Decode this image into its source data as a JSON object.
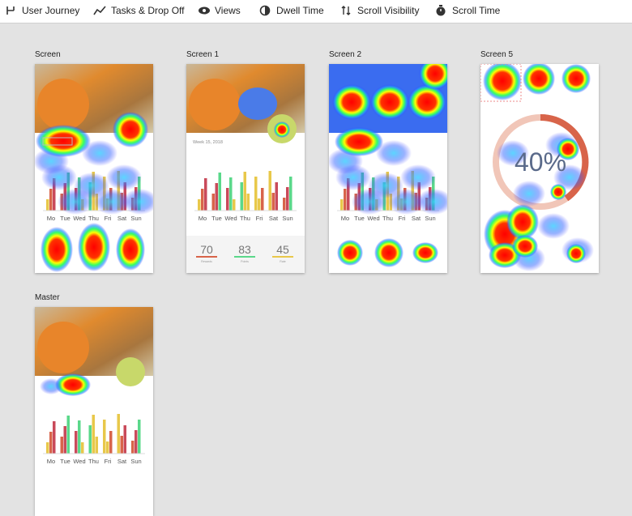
{
  "toolbar": [
    "User Journey",
    "Tasks & Drop Off",
    "Views",
    "Dwell Time",
    "Scroll Visibility",
    "Scroll Time"
  ],
  "screens": [
    {
      "label": "Screen"
    },
    {
      "label": "Screen 1"
    },
    {
      "label": "Screen 2"
    },
    {
      "label": "Screen 5"
    },
    {
      "label": "Master"
    }
  ],
  "days": [
    "Mo",
    "Tue",
    "Wed",
    "Thu",
    "Fri",
    "Sat",
    "Sun"
  ],
  "week": "Week 15, 2018",
  "stats": [
    {
      "value": "70",
      "label": "Rewards"
    },
    {
      "value": "83",
      "label": "Points"
    },
    {
      "value": "45",
      "label": "Rate"
    }
  ],
  "percent": "40%"
}
